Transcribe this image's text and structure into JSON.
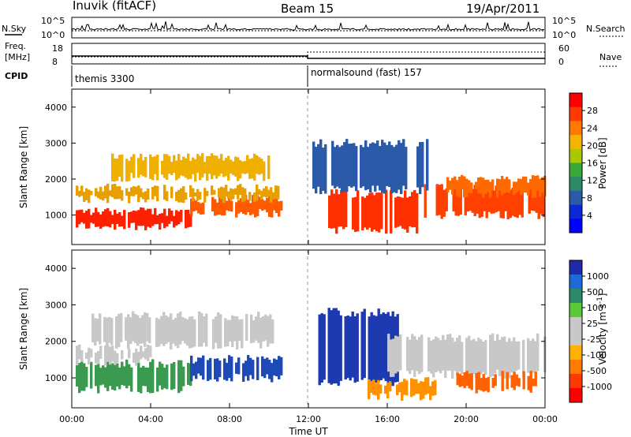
{
  "header": {
    "radar_title": "Inuvik (fitACF)",
    "beam": "Beam 15",
    "date": "19/Apr/2011"
  },
  "status_panels": {
    "nsky_label": "N.Sky",
    "nsearch_label": "N.Search",
    "nsky_ticks": [
      "10^5",
      "10^0"
    ],
    "nsearch_ticks": [
      "10^5",
      "10^0"
    ],
    "freq_label": "Freq.",
    "freq_unit": "[MHz]",
    "freq_ticks": [
      "18",
      "8"
    ],
    "nave_label": "Nave",
    "nave_ticks": [
      "60",
      "0"
    ],
    "cpid_label": "CPID",
    "cpid_modes": [
      {
        "name": "themis 3300"
      },
      {
        "name": "normalsound (fast) 157"
      }
    ]
  },
  "chart_data": [
    {
      "type": "heatmap",
      "name": "power",
      "ylabel": "Slant Range [km]",
      "xlabel": "Time UT",
      "x_ticks": [
        "00:00",
        "04:00",
        "08:00",
        "12:00",
        "16:00",
        "20:00",
        "00:00"
      ],
      "x_tick_hours": [
        0,
        4,
        8,
        12,
        16,
        20,
        24
      ],
      "xlim_hours": [
        0,
        24
      ],
      "y_ticks": [
        1000,
        2000,
        3000,
        4000
      ],
      "ylim_km": [
        180,
        4500
      ],
      "colorbar_label": "Power [dB]",
      "colorbar_ticks": [
        "28",
        "24",
        "20",
        "16",
        "12",
        "8",
        "4"
      ],
      "colorbar_colors": [
        "#ff0000",
        "#ff3a00",
        "#ff7a00",
        "#f5b400",
        "#a8c800",
        "#38a838",
        "#2a8a68",
        "#2a5aa8",
        "#0a2ad8",
        "#0000ff"
      ],
      "bands": [
        {
          "t_start": 0.2,
          "t_end": 6.0,
          "range_lo": 700,
          "range_hi": 1100,
          "color": "#ff2000"
        },
        {
          "t_start": 6.0,
          "t_end": 10.6,
          "range_lo": 1050,
          "range_hi": 1450,
          "color": "#ff5a00"
        },
        {
          "t_start": 0.2,
          "t_end": 10.5,
          "range_lo": 1450,
          "range_hi": 1750,
          "color": "#e8a000"
        },
        {
          "t_start": 2.0,
          "t_end": 10.0,
          "range_lo": 2050,
          "range_hi": 2600,
          "color": "#f0b000"
        },
        {
          "t_start": 13.0,
          "t_end": 17.5,
          "range_lo": 600,
          "range_hi": 1600,
          "color": "#ff3000"
        },
        {
          "t_start": 17.5,
          "t_end": 24.0,
          "range_lo": 1000,
          "range_hi": 1800,
          "color": "#ff4000"
        },
        {
          "t_start": 19.0,
          "t_end": 24.0,
          "range_lo": 1600,
          "range_hi": 2000,
          "color": "#ff6a00"
        },
        {
          "t_start": 12.2,
          "t_end": 18.0,
          "range_lo": 1700,
          "range_hi": 3000,
          "color": "#2a5aa8"
        }
      ]
    },
    {
      "type": "heatmap",
      "name": "velocity",
      "ylabel": "Slant Range [km]",
      "xlabel": "Time UT",
      "x_ticks": [
        "00:00",
        "04:00",
        "08:00",
        "12:00",
        "16:00",
        "20:00",
        "00:00"
      ],
      "x_tick_hours": [
        0,
        4,
        8,
        12,
        16,
        20,
        24
      ],
      "xlim_hours": [
        0,
        24
      ],
      "y_ticks": [
        1000,
        2000,
        3000,
        4000
      ],
      "ylim_km": [
        180,
        4500
      ],
      "colorbar_label": "Velocity [m s^-1]",
      "colorbar_ticks": [
        "1000",
        "500",
        "100",
        "25",
        "-25",
        "-100",
        "-500",
        "-1000"
      ],
      "colorbar_colors": [
        "#1e2aa8",
        "#1e6ad8",
        "#2a8a6a",
        "#5ac838",
        "#c8c8c8",
        "#c8c8c8",
        "#ffb000",
        "#ff7a00",
        "#ff3a00",
        "#ff0000"
      ],
      "bands": [
        {
          "t_start": 0.2,
          "t_end": 6.0,
          "range_lo": 700,
          "range_hi": 1400,
          "color": "#3a9a50"
        },
        {
          "t_start": 6.0,
          "t_end": 10.6,
          "range_lo": 1000,
          "range_hi": 1500,
          "color": "#1e4ab8"
        },
        {
          "t_start": 1.0,
          "t_end": 10.2,
          "range_lo": 1900,
          "range_hi": 2700,
          "color": "#c8c8c8"
        },
        {
          "t_start": 0.2,
          "t_end": 4.0,
          "range_lo": 1450,
          "range_hi": 1800,
          "color": "#c8c8c8"
        },
        {
          "t_start": 12.5,
          "t_end": 16.5,
          "range_lo": 900,
          "range_hi": 2800,
          "color": "#1e3ab0"
        },
        {
          "t_start": 16.0,
          "t_end": 24.0,
          "range_lo": 1100,
          "range_hi": 2100,
          "color": "#c8c8c8"
        },
        {
          "t_start": 19.5,
          "t_end": 23.5,
          "range_lo": 700,
          "range_hi": 1100,
          "color": "#ff6000"
        },
        {
          "t_start": 15.0,
          "t_end": 18.5,
          "range_lo": 500,
          "range_hi": 900,
          "color": "#ff9000"
        }
      ]
    }
  ]
}
